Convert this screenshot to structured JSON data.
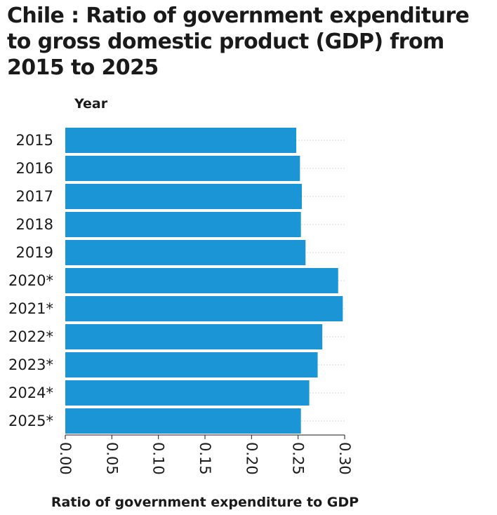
{
  "chart_data": {
    "type": "bar",
    "orientation": "horizontal",
    "title": "Chile : Ratio of government expenditure to gross domestic product (GDP) from 2015 to 2025",
    "ylabel": "Year",
    "xlabel": "Ratio of government expenditure to GDP",
    "categories": [
      "2015",
      "2016",
      "2017",
      "2018",
      "2019",
      "2020*",
      "2021*",
      "2022*",
      "2023*",
      "2024*",
      "2025*"
    ],
    "values": [
      0.248,
      0.252,
      0.254,
      0.253,
      0.258,
      0.293,
      0.298,
      0.276,
      0.271,
      0.262,
      0.253
    ],
    "xlim": [
      0,
      0.3
    ],
    "xticks": [
      "0.00",
      "0.05",
      "0.10",
      "0.15",
      "0.20",
      "0.25",
      "0.30"
    ],
    "bar_color": "#1b95d6",
    "grid": true
  }
}
